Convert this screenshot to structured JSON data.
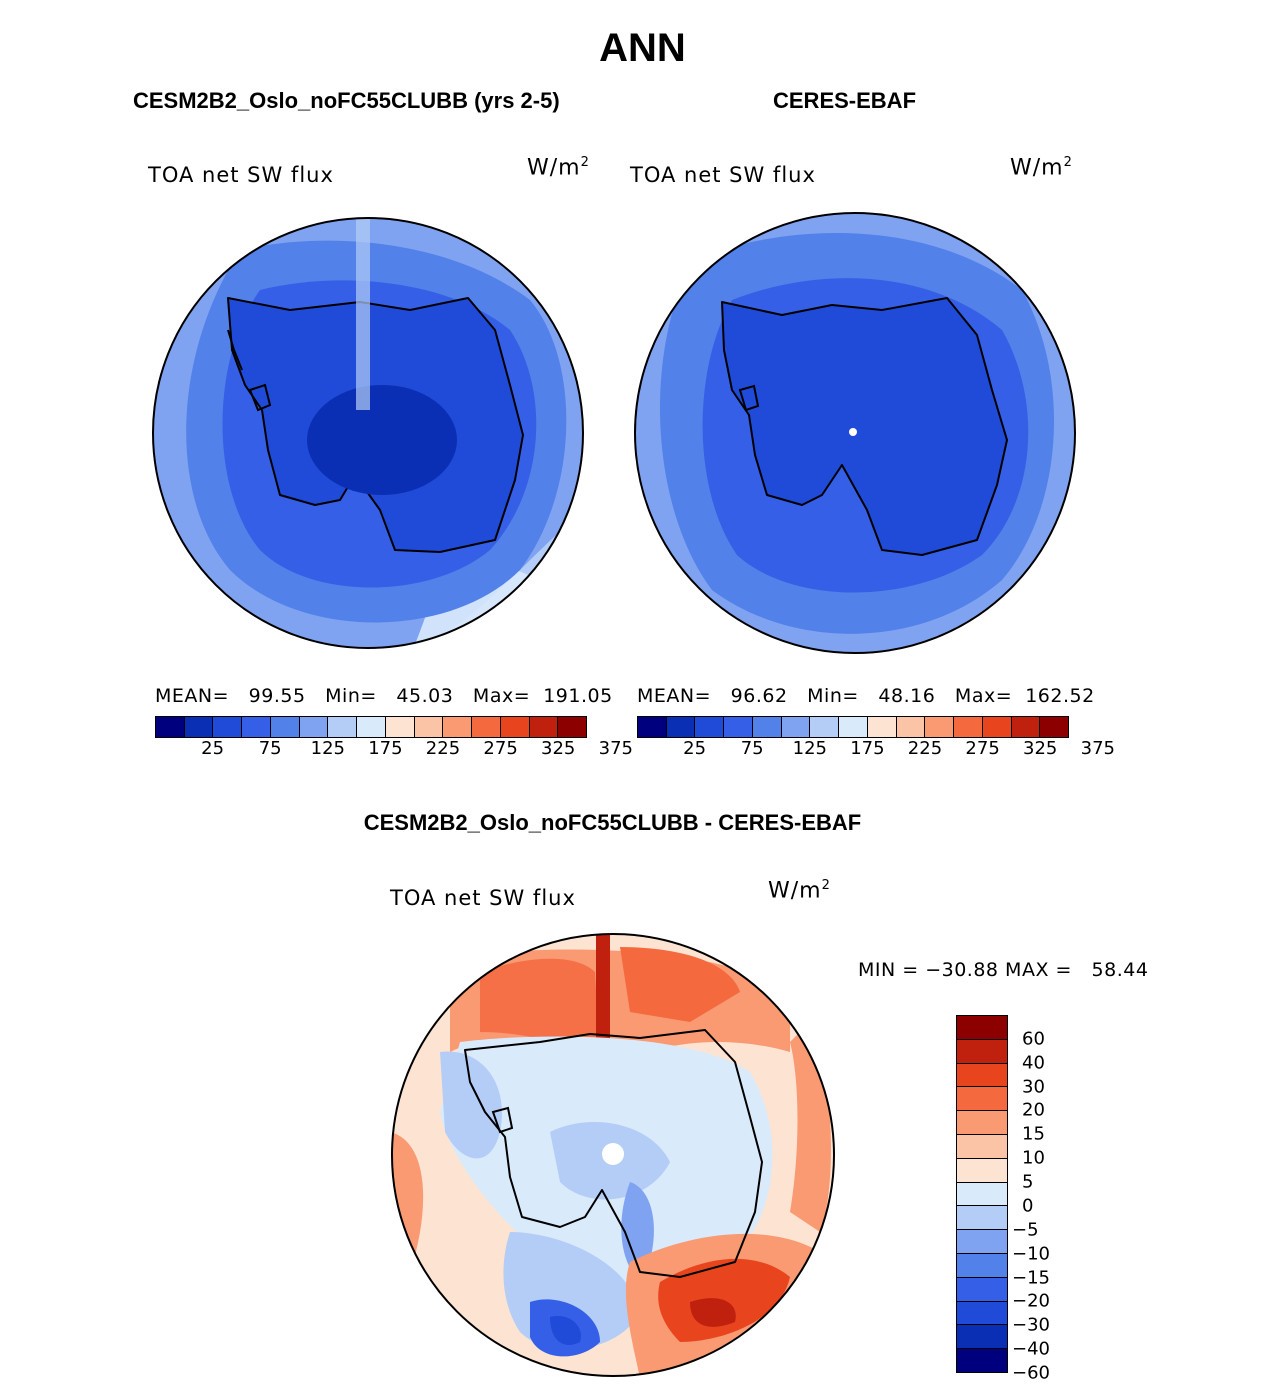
{
  "title": "ANN",
  "panels": [
    {
      "title": "CESM2B2_Oslo_noFC55CLUBB (yrs 2-5)",
      "subtitle": "TOA net SW flux",
      "units": "W/m",
      "units_sup": "2",
      "stats": "MEAN=   99.55   Min=   45.03   Max=  191.05",
      "colorbar_ticks": [
        "25",
        "75",
        "125",
        "175",
        "225",
        "275",
        "325",
        "375"
      ]
    },
    {
      "title": "CERES-EBAF",
      "subtitle": "TOA net SW flux",
      "units": "W/m",
      "units_sup": "2",
      "stats": "MEAN=   96.62   Min=   48.16   Max=  162.52",
      "colorbar_ticks": [
        "25",
        "75",
        "125",
        "175",
        "225",
        "275",
        "325",
        "375"
      ]
    }
  ],
  "diff_panel": {
    "title": "CESM2B2_Oslo_noFC55CLUBB - CERES-EBAF",
    "subtitle": "TOA net SW flux",
    "units": "W/m",
    "units_sup": "2",
    "stats": "MIN = −30.88 MAX =   58.44",
    "colorbar_ticks": [
      "60",
      "40",
      "30",
      "20",
      "15",
      "10",
      "5",
      "0",
      "−5",
      "−10",
      "−15",
      "−20",
      "−30",
      "−40",
      "−60"
    ]
  },
  "colors": {
    "abs_scale": [
      "#00007f",
      "#0a2fb4",
      "#1f4bd8",
      "#355fe6",
      "#5281ea",
      "#7fa3f0",
      "#b4cdf7",
      "#d9eafb",
      "#fde4d2",
      "#fcc4a7",
      "#f99a72",
      "#f4693e",
      "#e8451f",
      "#c0210f",
      "#8c0000"
    ],
    "diff_scale": [
      "#8c0000",
      "#c0210f",
      "#e8451f",
      "#f4693e",
      "#f99a72",
      "#fcc4a7",
      "#fde4d2",
      "#d9eafb",
      "#b4cdf7",
      "#7fa3f0",
      "#5281ea",
      "#355fe6",
      "#1f4bd8",
      "#0a2fb4",
      "#00007f"
    ]
  }
}
